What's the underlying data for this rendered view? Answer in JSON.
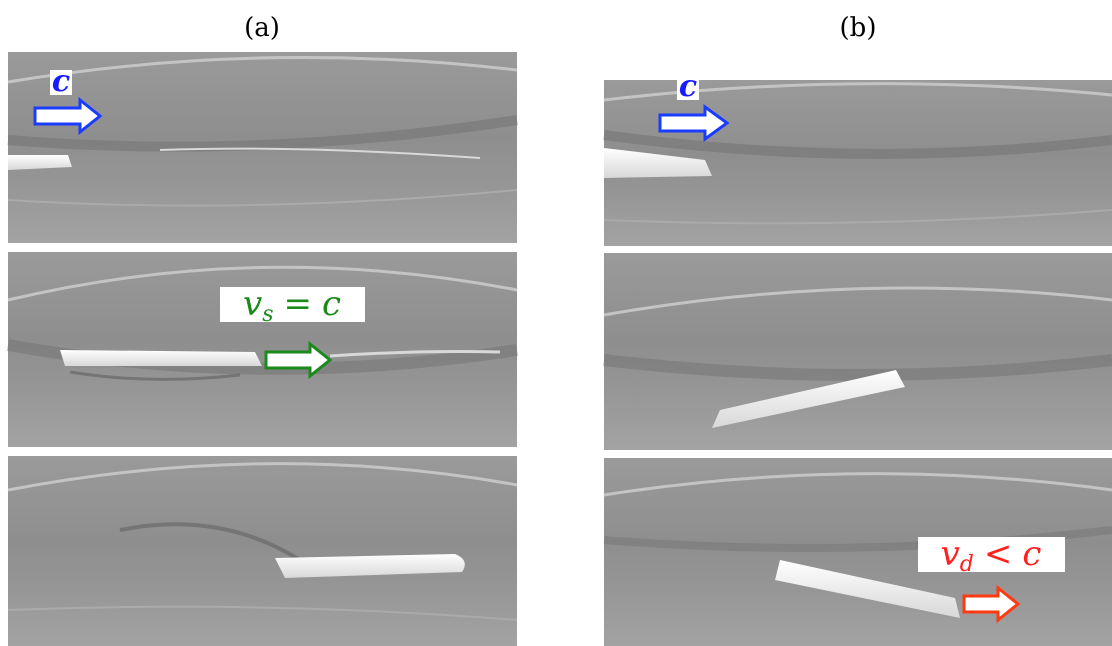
{
  "panel_a": {
    "label": "(a)",
    "frame_1_label": "c",
    "frame_2_label": {
      "symbol": "v",
      "subscript": "s",
      "relation": "=",
      "rhs": "c"
    }
  },
  "panel_b": {
    "label": "(b)",
    "frame_1_label": "c",
    "frame_3_label": {
      "symbol": "v",
      "subscript": "d",
      "relation": "<",
      "rhs": "c"
    }
  }
}
